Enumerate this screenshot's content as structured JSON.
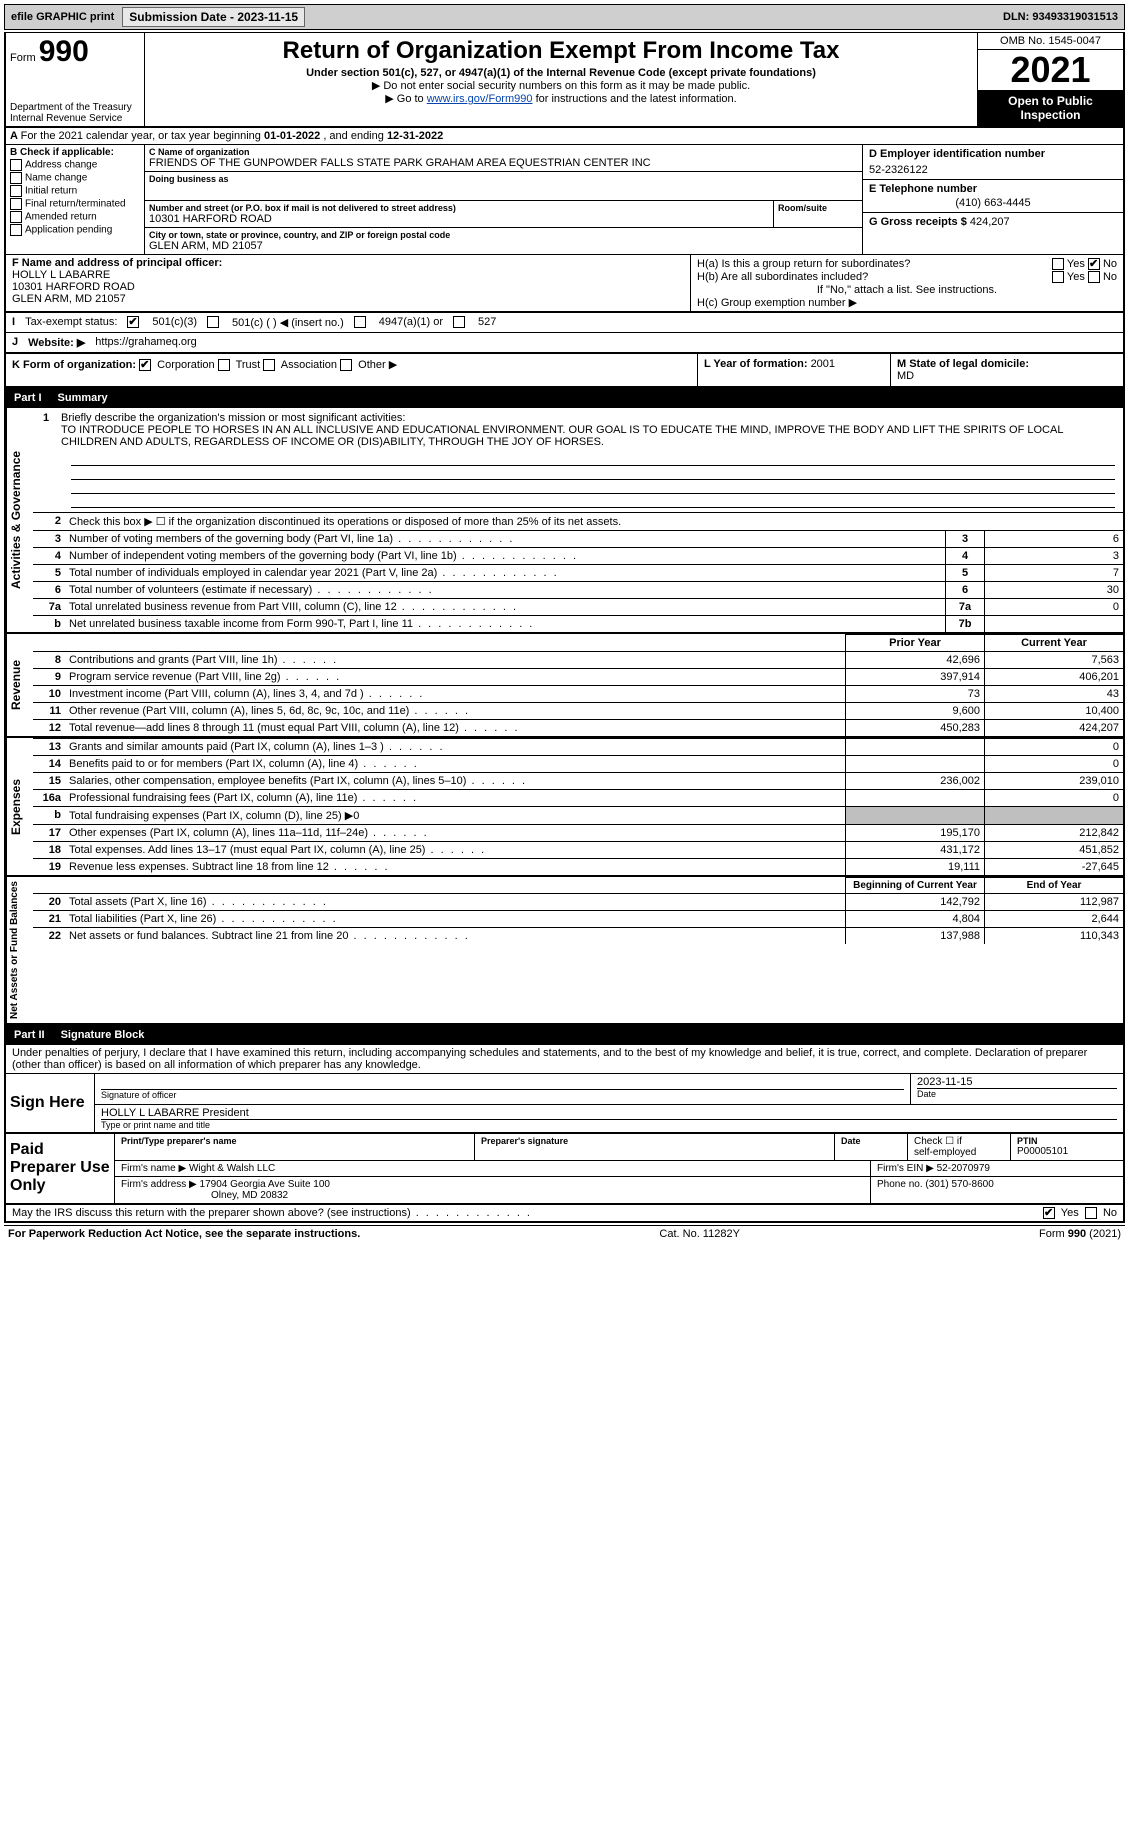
{
  "topbar": {
    "efile": "efile GRAPHIC print",
    "submission_label": "Submission Date - ",
    "submission_date": "2023-11-15",
    "dln_label": "DLN: ",
    "dln": "93493319031513"
  },
  "header": {
    "form_label": "Form",
    "form_num": "990",
    "dept": "Department of the Treasury\nInternal Revenue Service",
    "title": "Return of Organization Exempt From Income Tax",
    "sub1": "Under section 501(c), 527, or 4947(a)(1) of the Internal Revenue Code (except private foundations)",
    "sub2": "▶ Do not enter social security numbers on this form as it may be made public.",
    "sub3_pre": "▶ Go to ",
    "sub3_link": "www.irs.gov/Form990",
    "sub3_post": " for instructions and the latest information.",
    "omb": "OMB No. 1545-0047",
    "year": "2021",
    "open": "Open to Public Inspection"
  },
  "row_a": {
    "a_text": "For the 2021 calendar year, or tax year beginning ",
    "begin": "01-01-2022",
    "mid": "  , and ending ",
    "end": "12-31-2022"
  },
  "section_b": {
    "b_label": "B Check if applicable:",
    "checks": [
      "Address change",
      "Name change",
      "Initial return",
      "Final return/terminated",
      "Amended return",
      "Application pending"
    ],
    "c_name_label": "C Name of organization",
    "c_name": "FRIENDS OF THE GUNPOWDER FALLS STATE PARK GRAHAM AREA EQUESTRIAN CENTER INC",
    "dba_label": "Doing business as",
    "addr_label": "Number and street (or P.O. box if mail is not delivered to street address)",
    "room_label": "Room/suite",
    "addr": "10301 HARFORD ROAD",
    "city_label": "City or town, state or province, country, and ZIP or foreign postal code",
    "city": "GLEN ARM, MD  21057",
    "d_label": "D Employer identification number",
    "d_val": "52-2326122",
    "e_label": "E Telephone number",
    "e_val": "(410) 663-4445",
    "g_label": "G Gross receipts $ ",
    "g_val": "424,207"
  },
  "section_fh": {
    "f_label": "F  Name and address of principal officer:",
    "f_name": "HOLLY L LABARRE",
    "f_addr1": "10301 HARFORD ROAD",
    "f_addr2": "GLEN ARM, MD  21057",
    "ha": "H(a)  Is this a group return for subordinates?",
    "hb": "H(b)  Are all subordinates included?",
    "hb_note": "If \"No,\" attach a list. See instructions.",
    "hc": "H(c)  Group exemption number ▶"
  },
  "row_i": {
    "label": "I",
    "text": "Tax-exempt status:",
    "opts": [
      "501(c)(3)",
      "501(c) (  ) ◀ (insert no.)",
      "4947(a)(1) or",
      "527"
    ]
  },
  "row_j": {
    "label": "J",
    "text": "Website: ▶",
    "val": "https://grahameq.org"
  },
  "row_k": {
    "label": "K Form of organization:",
    "opts": [
      "Corporation",
      "Trust",
      "Association",
      "Other ▶"
    ],
    "l_label": "L Year of formation: ",
    "l_val": "2001",
    "m_label": "M State of legal domicile: ",
    "m_val": "MD"
  },
  "part1": {
    "pt": "Part I",
    "title": "Summary"
  },
  "mission": {
    "num": "1",
    "label": "Briefly describe the organization's mission or most significant activities:",
    "text": "TO INTRODUCE PEOPLE TO HORSES IN AN ALL INCLUSIVE AND EDUCATIONAL ENVIRONMENT. OUR GOAL IS TO EDUCATE THE MIND, IMPROVE THE BODY AND LIFT THE SPIRITS OF LOCAL CHILDREN AND ADULTS, REGARDLESS OF INCOME OR (DIS)ABILITY, THROUGH THE JOY OF HORSES."
  },
  "gov_rows": [
    {
      "n": "2",
      "d": "Check this box ▶ ☐  if the organization discontinued its operations or disposed of more than 25% of its net assets.",
      "r": "",
      "v": ""
    },
    {
      "n": "3",
      "d": "Number of voting members of the governing body (Part VI, line 1a)",
      "r": "3",
      "v": "6"
    },
    {
      "n": "4",
      "d": "Number of independent voting members of the governing body (Part VI, line 1b)",
      "r": "4",
      "v": "3"
    },
    {
      "n": "5",
      "d": "Total number of individuals employed in calendar year 2021 (Part V, line 2a)",
      "r": "5",
      "v": "7"
    },
    {
      "n": "6",
      "d": "Total number of volunteers (estimate if necessary)",
      "r": "6",
      "v": "30"
    },
    {
      "n": "7a",
      "d": "Total unrelated business revenue from Part VIII, column (C), line 12",
      "r": "7a",
      "v": "0"
    },
    {
      "n": "b",
      "d": "Net unrelated business taxable income from Form 990-T, Part I, line 11",
      "r": "7b",
      "v": ""
    }
  ],
  "rev_header": {
    "py": "Prior Year",
    "cy": "Current Year"
  },
  "rev_rows": [
    {
      "n": "8",
      "d": "Contributions and grants (Part VIII, line 1h)",
      "py": "42,696",
      "cy": "7,563"
    },
    {
      "n": "9",
      "d": "Program service revenue (Part VIII, line 2g)",
      "py": "397,914",
      "cy": "406,201"
    },
    {
      "n": "10",
      "d": "Investment income (Part VIII, column (A), lines 3, 4, and 7d )",
      "py": "73",
      "cy": "43"
    },
    {
      "n": "11",
      "d": "Other revenue (Part VIII, column (A), lines 5, 6d, 8c, 9c, 10c, and 11e)",
      "py": "9,600",
      "cy": "10,400"
    },
    {
      "n": "12",
      "d": "Total revenue—add lines 8 through 11 (must equal Part VIII, column (A), line 12)",
      "py": "450,283",
      "cy": "424,207"
    }
  ],
  "exp_rows": [
    {
      "n": "13",
      "d": "Grants and similar amounts paid (Part IX, column (A), lines 1–3 )",
      "py": "",
      "cy": "0"
    },
    {
      "n": "14",
      "d": "Benefits paid to or for members (Part IX, column (A), line 4)",
      "py": "",
      "cy": "0"
    },
    {
      "n": "15",
      "d": "Salaries, other compensation, employee benefits (Part IX, column (A), lines 5–10)",
      "py": "236,002",
      "cy": "239,010"
    },
    {
      "n": "16a",
      "d": "Professional fundraising fees (Part IX, column (A), line 11e)",
      "py": "",
      "cy": "0"
    },
    {
      "n": "b",
      "d": "Total fundraising expenses (Part IX, column (D), line 25) ▶0",
      "py": "grey",
      "cy": "grey"
    },
    {
      "n": "17",
      "d": "Other expenses (Part IX, column (A), lines 11a–11d, 11f–24e)",
      "py": "195,170",
      "cy": "212,842"
    },
    {
      "n": "18",
      "d": "Total expenses. Add lines 13–17 (must equal Part IX, column (A), line 25)",
      "py": "431,172",
      "cy": "451,852"
    },
    {
      "n": "19",
      "d": "Revenue less expenses. Subtract line 18 from line 12",
      "py": "19,111",
      "cy": "-27,645"
    }
  ],
  "na_header": {
    "py": "Beginning of Current Year",
    "cy": "End of Year"
  },
  "na_rows": [
    {
      "n": "20",
      "d": "Total assets (Part X, line 16)",
      "py": "142,792",
      "cy": "112,987"
    },
    {
      "n": "21",
      "d": "Total liabilities (Part X, line 26)",
      "py": "4,804",
      "cy": "2,644"
    },
    {
      "n": "22",
      "d": "Net assets or fund balances. Subtract line 21 from line 20",
      "py": "137,988",
      "cy": "110,343"
    }
  ],
  "part2": {
    "pt": "Part II",
    "title": "Signature Block"
  },
  "sig": {
    "intro": "Under penalties of perjury, I declare that I have examined this return, including accompanying schedules and statements, and to the best of my knowledge and belief, it is true, correct, and complete. Declaration of preparer (other than officer) is based on all information of which preparer has any knowledge.",
    "sign_here": "Sign Here",
    "sig_label": "Signature of officer",
    "date_label": "Date",
    "date_val": "2023-11-15",
    "name_val": "HOLLY L LABARRE  President",
    "name_label": "Type or print name and title"
  },
  "paid": {
    "label": "Paid Preparer Use Only",
    "h1": "Print/Type preparer's name",
    "h2": "Preparer's signature",
    "h3": "Date",
    "h4_a": "Check ☐ if",
    "h4_b": "self-employed",
    "h5": "PTIN",
    "ptin": "P00005101",
    "firm_name_l": "Firm's name    ▶",
    "firm_name": "Wight & Walsh LLC",
    "firm_ein_l": "Firm's EIN ▶ ",
    "firm_ein": "52-2070979",
    "firm_addr_l": "Firm's address ▶",
    "firm_addr1": "17904 Georgia Ave Suite 100",
    "firm_addr2": "Olney, MD  20832",
    "phone_l": "Phone no. ",
    "phone": "(301) 570-8600"
  },
  "discuss": {
    "text": "May the IRS discuss this return with the preparer shown above? (see instructions)",
    "yes": "Yes",
    "no": "No"
  },
  "footer": {
    "left": "For Paperwork Reduction Act Notice, see the separate instructions.",
    "mid": "Cat. No. 11282Y",
    "right_pre": "Form ",
    "right_form": "990",
    "right_post": " (2021)"
  },
  "vert_labels": {
    "gov": "Activities & Governance",
    "rev": "Revenue",
    "exp": "Expenses",
    "na": "Net Assets or Fund Balances"
  }
}
